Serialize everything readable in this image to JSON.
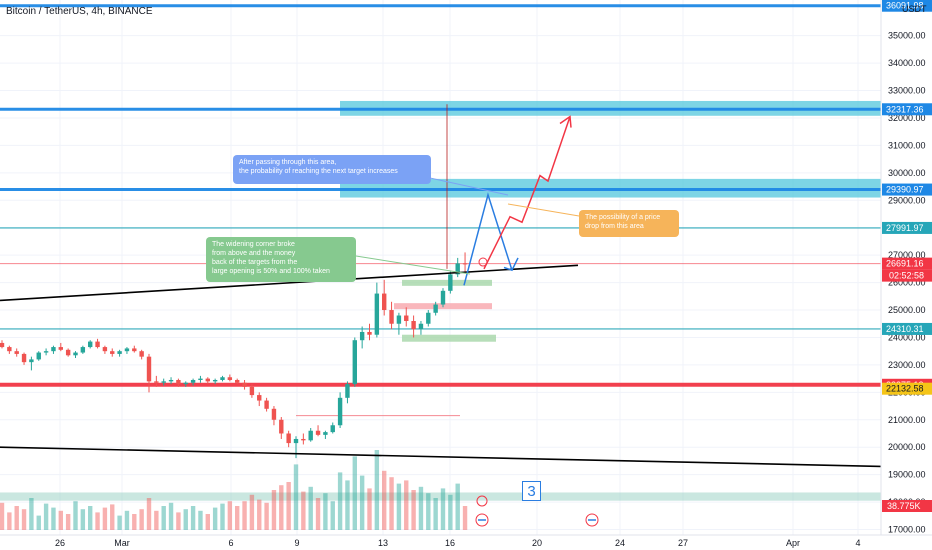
{
  "header": {
    "symbol": "Bitcoin / TetherUS, 4h, BINANCE",
    "currency": "USDT"
  },
  "chart_data": {
    "type": "candlestick",
    "y_range": [
      16800,
      36300
    ],
    "y_ticks": [
      {
        "v": 35000,
        "t": "35000.00"
      },
      {
        "v": 34000,
        "t": "34000.00"
      },
      {
        "v": 33000,
        "t": "33000.00"
      },
      {
        "v": 32000,
        "t": "32000.00"
      },
      {
        "v": 31000,
        "t": "31000.00"
      },
      {
        "v": 30000,
        "t": "30000.00"
      },
      {
        "v": 29000,
        "t": "29000.00"
      },
      {
        "v": 28000,
        "t": "28000.00"
      },
      {
        "v": 27000,
        "t": "27000.00"
      },
      {
        "v": 26000,
        "t": "26000.00"
      },
      {
        "v": 25000,
        "t": "25000.00"
      },
      {
        "v": 24000,
        "t": "24000.00"
      },
      {
        "v": 23000,
        "t": "23000.00"
      },
      {
        "v": 22000,
        "t": "22000.00"
      },
      {
        "v": 21000,
        "t": "21000.00"
      },
      {
        "v": 20000,
        "t": "20000.00"
      },
      {
        "v": 19000,
        "t": "19000.00"
      },
      {
        "v": 18000,
        "t": "18000.00"
      },
      {
        "v": 17000,
        "t": "17000.00"
      }
    ],
    "x_ticks": [
      "26",
      "Mar",
      "6",
      "9",
      "13",
      "16",
      "20",
      "24",
      "27",
      "Apr",
      "4"
    ],
    "price_labels": [
      {
        "v": 36091.98,
        "t": "36091.98",
        "color": "#1e88e5"
      },
      {
        "v": 32317.36,
        "t": "32317.36",
        "color": "#1e88e5"
      },
      {
        "v": 29390.97,
        "t": "29390.97",
        "color": "#1e88e5"
      },
      {
        "v": 27991.97,
        "t": "27991.97",
        "color": "#26a6b8"
      },
      {
        "v": 26691.16,
        "t": "26691.16",
        "color": "#f23645"
      },
      {
        "v": 24310.31,
        "t": "24310.31",
        "color": "#26a6b8"
      },
      {
        "v": 22275.12,
        "t": "22275.12",
        "color": "#f23645"
      },
      {
        "v": 22132.58,
        "t": "22132.58",
        "color": "#f5c518"
      }
    ],
    "countdown": "02:52:58",
    "volume_label": "38.775K",
    "horizontal_levels": [
      36091.98,
      32317.36,
      29390.97,
      27991.97,
      26691.16,
      24310.31,
      22275.12
    ],
    "zones": [
      {
        "from": 32080,
        "to": 32620,
        "color": "#52c7dc"
      },
      {
        "from": 29100,
        "to": 29780,
        "color": "#52c7dc"
      },
      {
        "from": 18050,
        "to": 18350,
        "color": "#9fd3c7"
      }
    ],
    "trendlines": [
      {
        "name": "upper",
        "points": [
          [
            "2023-02-23",
            25350
          ],
          [
            "2023-03-21",
            26500
          ]
        ]
      },
      {
        "name": "lower",
        "points": [
          [
            "2023-02-23",
            20000
          ],
          [
            "2023-04-05",
            19250
          ]
        ]
      }
    ],
    "candles": [
      [
        23800,
        23900,
        23600,
        23650
      ],
      [
        23650,
        23700,
        23400,
        23500
      ],
      [
        23500,
        23600,
        23300,
        23400
      ],
      [
        23400,
        23450,
        23000,
        23100
      ],
      [
        23100,
        23300,
        22800,
        23200
      ],
      [
        23200,
        23500,
        23150,
        23450
      ],
      [
        23450,
        23600,
        23350,
        23500
      ],
      [
        23500,
        23700,
        23400,
        23650
      ],
      [
        23650,
        23800,
        23500,
        23550
      ],
      [
        23550,
        23600,
        23300,
        23350
      ],
      [
        23350,
        23500,
        23250,
        23450
      ],
      [
        23450,
        23700,
        23400,
        23650
      ],
      [
        23650,
        23900,
        23600,
        23850
      ],
      [
        23850,
        23950,
        23600,
        23650
      ],
      [
        23650,
        23700,
        23400,
        23500
      ],
      [
        23500,
        23600,
        23300,
        23400
      ],
      [
        23400,
        23550,
        23300,
        23500
      ],
      [
        23500,
        23650,
        23400,
        23600
      ],
      [
        23600,
        23700,
        23450,
        23500
      ],
      [
        23500,
        23550,
        23200,
        23300
      ],
      [
        23300,
        23400,
        22000,
        22400
      ],
      [
        22400,
        22600,
        22200,
        22350
      ],
      [
        22350,
        22500,
        22250,
        22400
      ],
      [
        22400,
        22550,
        22300,
        22450
      ],
      [
        22450,
        22500,
        22200,
        22300
      ],
      [
        22300,
        22400,
        22200,
        22350
      ],
      [
        22350,
        22500,
        22250,
        22450
      ],
      [
        22450,
        22600,
        22350,
        22500
      ],
      [
        22500,
        22550,
        22300,
        22400
      ],
      [
        22400,
        22500,
        22300,
        22450
      ],
      [
        22450,
        22600,
        22400,
        22550
      ],
      [
        22550,
        22650,
        22400,
        22450
      ],
      [
        22450,
        22500,
        22300,
        22350
      ],
      [
        22350,
        22450,
        22100,
        22200
      ],
      [
        22200,
        22300,
        21800,
        21900
      ],
      [
        21900,
        22000,
        21500,
        21700
      ],
      [
        21700,
        21800,
        21300,
        21400
      ],
      [
        21400,
        21500,
        20800,
        21000
      ],
      [
        21000,
        21100,
        20300,
        20500
      ],
      [
        20500,
        20600,
        20000,
        20150
      ],
      [
        20150,
        20400,
        19600,
        20300
      ],
      [
        20300,
        20500,
        20100,
        20250
      ],
      [
        20250,
        20700,
        20200,
        20600
      ],
      [
        20600,
        20800,
        20400,
        20450
      ],
      [
        20450,
        20600,
        20300,
        20550
      ],
      [
        20550,
        20900,
        20500,
        20800
      ],
      [
        20800,
        22000,
        20700,
        21800
      ],
      [
        21800,
        22400,
        21600,
        22300
      ],
      [
        22300,
        24000,
        22200,
        23900
      ],
      [
        23900,
        24400,
        23600,
        24200
      ],
      [
        24200,
        24500,
        23900,
        24100
      ],
      [
        24100,
        26000,
        24000,
        25600
      ],
      [
        25600,
        26100,
        24800,
        25000
      ],
      [
        25000,
        25300,
        24300,
        24500
      ],
      [
        24500,
        24900,
        24100,
        24800
      ],
      [
        24800,
        25100,
        24400,
        24600
      ],
      [
        24600,
        24800,
        24000,
        24300
      ],
      [
        24300,
        24600,
        24100,
        24500
      ],
      [
        24500,
        25000,
        24400,
        24900
      ],
      [
        24900,
        25300,
        24800,
        25200
      ],
      [
        25200,
        25800,
        25100,
        25700
      ],
      [
        25700,
        26400,
        25600,
        26300
      ],
      [
        26300,
        26900,
        26200,
        26700
      ],
      [
        26700,
        27100,
        26400,
        26691
      ]
    ],
    "volumes": [
      0.34,
      0.22,
      0.3,
      0.26,
      0.4,
      0.18,
      0.33,
      0.28,
      0.24,
      0.2,
      0.36,
      0.26,
      0.3,
      0.22,
      0.28,
      0.32,
      0.18,
      0.24,
      0.2,
      0.26,
      0.4,
      0.24,
      0.3,
      0.34,
      0.22,
      0.26,
      0.3,
      0.24,
      0.2,
      0.28,
      0.33,
      0.36,
      0.3,
      0.36,
      0.44,
      0.38,
      0.34,
      0.5,
      0.56,
      0.6,
      0.82,
      0.48,
      0.54,
      0.4,
      0.46,
      0.36,
      0.72,
      0.62,
      0.92,
      0.68,
      0.52,
      1.0,
      0.74,
      0.66,
      0.58,
      0.62,
      0.5,
      0.54,
      0.46,
      0.4,
      0.52,
      0.44,
      0.58,
      0.3
    ],
    "projection_blue": [
      [
        2023,
        25400
      ],
      [
        2023,
        27700
      ],
      [
        2023,
        25900
      ]
    ],
    "annotations": [
      "After passing through this area,\n the probability of reaching the next target increases",
      "The widening corner broke\n from above and the money\nback of the targets from the\n large opening is 50% and 100% taken",
      "The possibility of a price\ndrop from this area"
    ],
    "wave_label": "3"
  },
  "colors": {
    "up": "#26a69a",
    "down": "#ef5350",
    "blue_level": "#1e88e5",
    "teal_level": "#26a6b8",
    "red_level": "#f23645",
    "yellow_level": "#f5c518"
  }
}
